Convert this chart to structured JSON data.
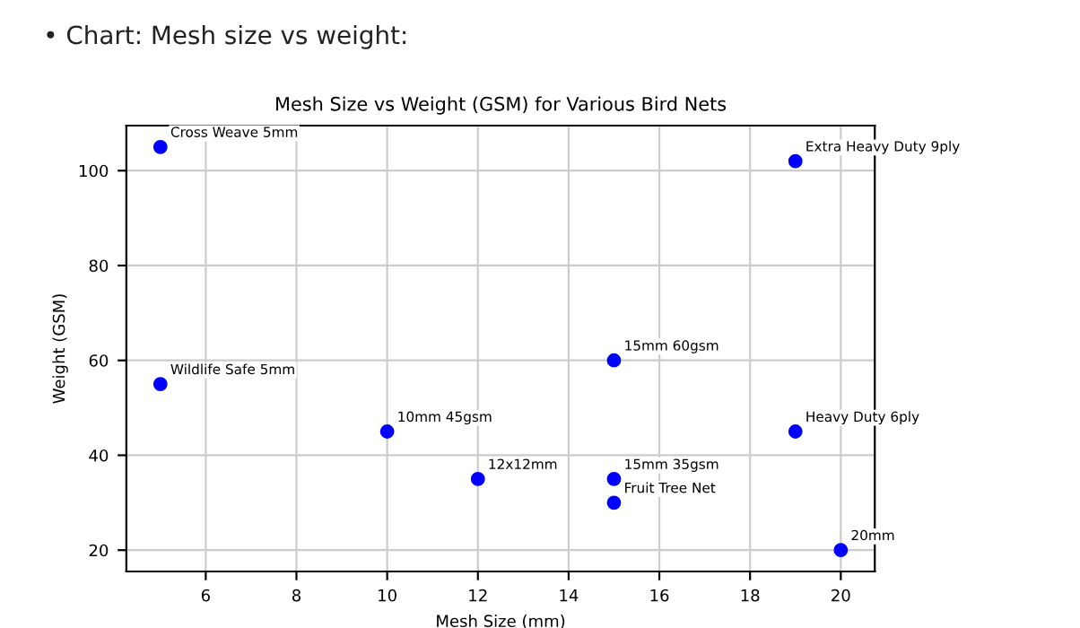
{
  "chart_data": {
    "type": "scatter",
    "title": "Mesh Size vs Weight (GSM) for Various Bird Nets",
    "xlabel": "Mesh Size (mm)",
    "ylabel": "Weight (GSM)",
    "annotations": [
      "• Chart: Mesh size vs weight:"
    ],
    "x": [
      5,
      5,
      10,
      12,
      15,
      15,
      15,
      19,
      19,
      20
    ],
    "values": [
      105,
      55,
      45,
      35,
      60,
      35,
      30,
      102,
      45,
      20
    ],
    "value_labels": [
      "Cross Weave 5mm",
      "Wildlife Safe 5mm",
      "10mm 45gsm",
      "12x12mm",
      "15mm 60gsm",
      "15mm 35gsm",
      "Fruit Tree Net",
      "Extra Heavy Duty 9ply",
      "Heavy Duty 6ply",
      "20mm"
    ],
    "color": "#0000ff",
    "marker": "circle",
    "xlim": [
      4.25,
      20.75
    ],
    "ylim": [
      15.5,
      109.5
    ],
    "xticks": [
      6,
      8,
      10,
      12,
      14,
      16,
      18,
      20
    ],
    "yticks": [
      20,
      40,
      60,
      80,
      100
    ],
    "grid": true
  }
}
